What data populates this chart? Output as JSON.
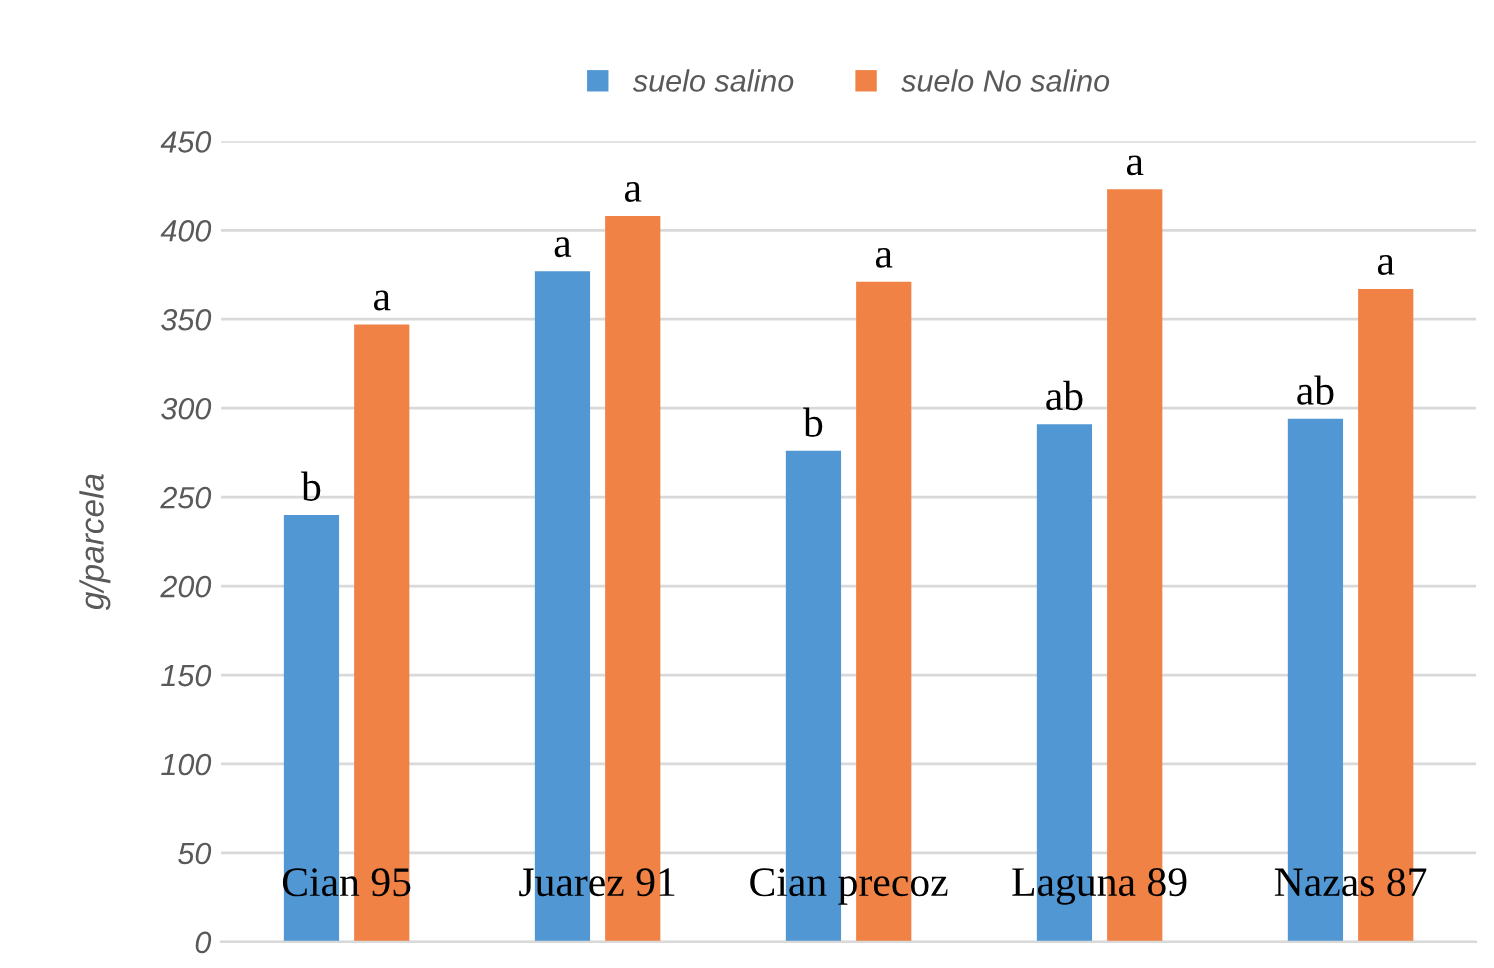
{
  "chart_data": {
    "type": "bar",
    "ylabel": "g/parcela",
    "categories": [
      "Cian 95",
      "Juarez 91",
      "Cian precoz",
      "Laguna 89",
      "Nazas 87"
    ],
    "series": [
      {
        "name": "suelo salino",
        "color": "#5097d3",
        "values": [
          240,
          377,
          276,
          291,
          294
        ],
        "value_labels": [
          "b",
          "a",
          "b",
          "ab",
          "ab"
        ]
      },
      {
        "name": "suelo No salino",
        "color": "#f08246",
        "values": [
          347,
          408,
          371,
          423,
          367
        ],
        "value_labels": [
          "a",
          "a",
          "a",
          "a",
          "a"
        ]
      }
    ],
    "ylim": [
      0,
      450
    ],
    "yticks": [
      0,
      50,
      100,
      150,
      200,
      250,
      300,
      350,
      400,
      450
    ],
    "grid": "y",
    "legend": "top"
  }
}
